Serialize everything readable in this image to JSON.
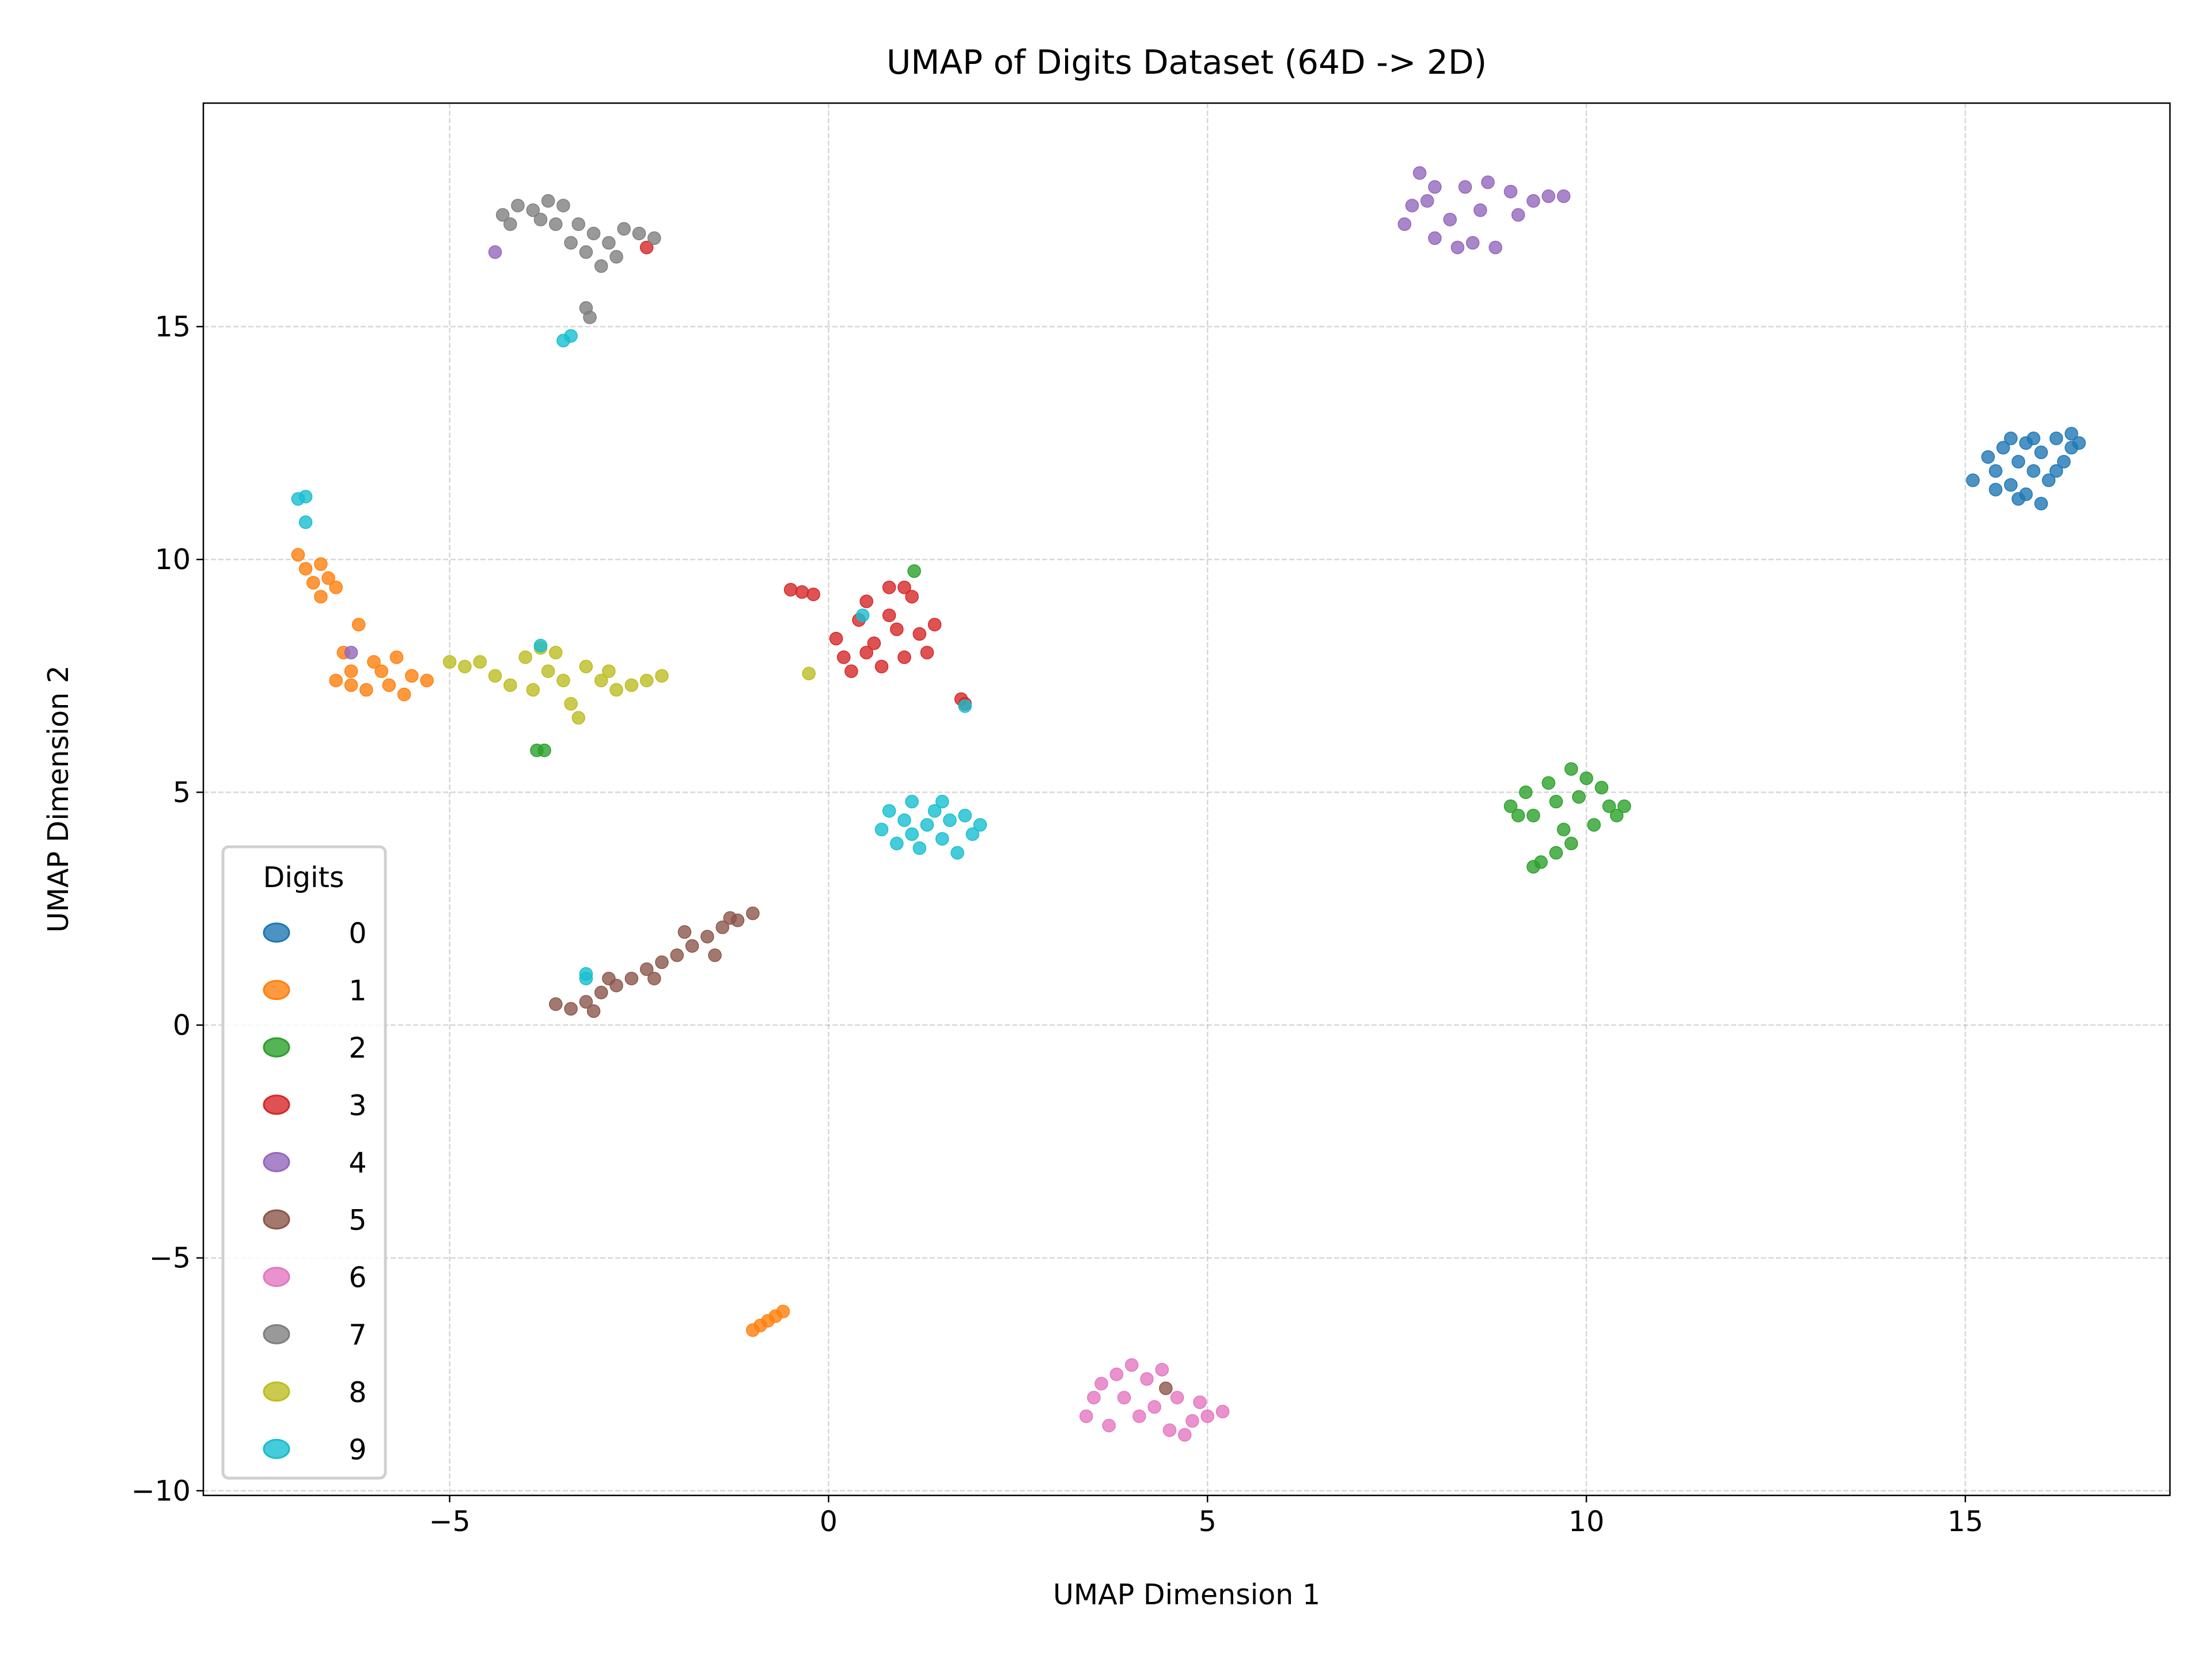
{
  "chart_data": {
    "type": "scatter",
    "title": "UMAP of Digits Dataset (64D -> 2D)",
    "xlabel": "UMAP Dimension 1",
    "ylabel": "UMAP Dimension 2",
    "xlim": [
      -8.25,
      17.7
    ],
    "ylim": [
      -10.1,
      19.8
    ],
    "xticks": [
      -5,
      0,
      5,
      10,
      15
    ],
    "yticks": [
      -10,
      -5,
      0,
      5,
      10,
      15
    ],
    "xtick_labels": [
      "−5",
      "0",
      "5",
      "10",
      "15"
    ],
    "ytick_labels": [
      "−10",
      "−5",
      "0",
      "5",
      "10",
      "15"
    ],
    "grid": true,
    "grid_style": "dashed",
    "legend": {
      "title": "Digits",
      "placement": "lower-left"
    },
    "marker_alpha": 0.8,
    "series": [
      {
        "name": "0",
        "color": "#1f77b4",
        "points": [
          [
            15.1,
            11.7
          ],
          [
            15.3,
            12.2
          ],
          [
            15.4,
            11.9
          ],
          [
            15.5,
            12.4
          ],
          [
            15.6,
            11.6
          ],
          [
            15.7,
            12.1
          ],
          [
            15.8,
            11.4
          ],
          [
            15.8,
            12.5
          ],
          [
            15.9,
            11.9
          ],
          [
            16.0,
            12.3
          ],
          [
            16.0,
            11.2
          ],
          [
            16.1,
            11.7
          ],
          [
            16.2,
            12.6
          ],
          [
            16.3,
            12.1
          ],
          [
            16.4,
            12.4
          ],
          [
            16.5,
            12.5
          ],
          [
            15.6,
            12.6
          ],
          [
            15.4,
            11.5
          ],
          [
            16.2,
            11.9
          ],
          [
            15.9,
            12.6
          ],
          [
            16.4,
            12.7
          ],
          [
            15.7,
            11.3
          ]
        ]
      },
      {
        "name": "1",
        "color": "#ff7f0e",
        "points": [
          [
            -7.0,
            10.1
          ],
          [
            -6.9,
            9.8
          ],
          [
            -6.8,
            9.5
          ],
          [
            -6.7,
            9.2
          ],
          [
            -6.6,
            9.6
          ],
          [
            -6.5,
            9.4
          ],
          [
            -6.7,
            9.9
          ],
          [
            -6.2,
            8.6
          ],
          [
            -6.4,
            8.0
          ],
          [
            -6.5,
            7.4
          ],
          [
            -6.3,
            7.3
          ],
          [
            -6.1,
            7.2
          ],
          [
            -5.9,
            7.6
          ],
          [
            -5.8,
            7.3
          ],
          [
            -5.6,
            7.1
          ],
          [
            -5.5,
            7.5
          ],
          [
            -5.3,
            7.4
          ],
          [
            -6.0,
            7.8
          ],
          [
            -5.7,
            7.9
          ],
          [
            -6.3,
            7.6
          ],
          [
            -1.0,
            -6.55
          ],
          [
            -0.9,
            -6.45
          ],
          [
            -0.8,
            -6.35
          ],
          [
            -0.7,
            -6.25
          ],
          [
            -0.6,
            -6.15
          ]
        ]
      },
      {
        "name": "2",
        "color": "#2ca02c",
        "points": [
          [
            9.0,
            4.7
          ],
          [
            9.2,
            5.0
          ],
          [
            9.3,
            4.5
          ],
          [
            9.5,
            5.2
          ],
          [
            9.6,
            4.8
          ],
          [
            9.8,
            5.5
          ],
          [
            9.9,
            4.9
          ],
          [
            10.0,
            5.3
          ],
          [
            10.2,
            5.1
          ],
          [
            10.3,
            4.7
          ],
          [
            10.4,
            4.5
          ],
          [
            10.1,
            4.3
          ],
          [
            9.8,
            3.9
          ],
          [
            9.6,
            3.7
          ],
          [
            9.4,
            3.5
          ],
          [
            9.3,
            3.4
          ],
          [
            9.7,
            4.2
          ],
          [
            10.5,
            4.7
          ],
          [
            9.1,
            4.5
          ],
          [
            -3.85,
            5.9
          ],
          [
            -3.75,
            5.9
          ],
          [
            1.13,
            9.75
          ]
        ]
      },
      {
        "name": "3",
        "color": "#d62728",
        "points": [
          [
            -0.5,
            9.35
          ],
          [
            -0.35,
            9.3
          ],
          [
            -0.2,
            9.25
          ],
          [
            0.1,
            8.3
          ],
          [
            0.2,
            7.9
          ],
          [
            0.3,
            7.6
          ],
          [
            0.4,
            8.7
          ],
          [
            0.5,
            9.1
          ],
          [
            0.6,
            8.2
          ],
          [
            0.7,
            7.7
          ],
          [
            0.8,
            9.4
          ],
          [
            0.9,
            8.5
          ],
          [
            1.0,
            7.9
          ],
          [
            1.1,
            9.2
          ],
          [
            1.2,
            8.4
          ],
          [
            1.3,
            8.0
          ],
          [
            1.4,
            8.6
          ],
          [
            0.5,
            8.0
          ],
          [
            0.8,
            8.8
          ],
          [
            1.0,
            9.4
          ],
          [
            1.75,
            7.0
          ],
          [
            1.8,
            6.9
          ],
          [
            -2.4,
            16.7
          ]
        ]
      },
      {
        "name": "4",
        "color": "#9467bd",
        "points": [
          [
            7.6,
            17.2
          ],
          [
            7.7,
            17.6
          ],
          [
            7.8,
            18.3
          ],
          [
            8.0,
            18.0
          ],
          [
            8.0,
            16.9
          ],
          [
            8.2,
            17.3
          ],
          [
            8.3,
            16.7
          ],
          [
            8.5,
            16.8
          ],
          [
            8.6,
            17.5
          ],
          [
            8.7,
            18.1
          ],
          [
            8.8,
            16.7
          ],
          [
            9.0,
            17.9
          ],
          [
            9.1,
            17.4
          ],
          [
            9.3,
            17.7
          ],
          [
            9.5,
            17.8
          ],
          [
            9.7,
            17.8
          ],
          [
            7.9,
            17.7
          ],
          [
            8.4,
            18.0
          ],
          [
            -4.4,
            16.6
          ],
          [
            -6.3,
            8.0
          ]
        ]
      },
      {
        "name": "5",
        "color": "#8c564b",
        "points": [
          [
            -3.6,
            0.45
          ],
          [
            -3.4,
            0.35
          ],
          [
            -3.2,
            0.5
          ],
          [
            -3.0,
            0.7
          ],
          [
            -2.8,
            0.85
          ],
          [
            -2.6,
            1.0
          ],
          [
            -2.4,
            1.2
          ],
          [
            -2.2,
            1.35
          ],
          [
            -2.0,
            1.5
          ],
          [
            -1.8,
            1.7
          ],
          [
            -1.6,
            1.9
          ],
          [
            -1.4,
            2.1
          ],
          [
            -1.2,
            2.25
          ],
          [
            -1.0,
            2.4
          ],
          [
            -2.9,
            1.0
          ],
          [
            -2.3,
            1.0
          ],
          [
            -1.9,
            2.0
          ],
          [
            -1.5,
            1.5
          ],
          [
            -1.3,
            2.3
          ],
          [
            -3.1,
            0.3
          ],
          [
            4.45,
            -7.8
          ]
        ]
      },
      {
        "name": "6",
        "color": "#e377c2",
        "points": [
          [
            3.4,
            -8.4
          ],
          [
            3.6,
            -7.7
          ],
          [
            3.7,
            -8.6
          ],
          [
            3.9,
            -8.0
          ],
          [
            4.0,
            -7.3
          ],
          [
            4.1,
            -8.4
          ],
          [
            4.2,
            -7.6
          ],
          [
            4.3,
            -8.2
          ],
          [
            4.5,
            -8.7
          ],
          [
            4.6,
            -8.0
          ],
          [
            4.8,
            -8.5
          ],
          [
            4.9,
            -8.1
          ],
          [
            5.0,
            -8.4
          ],
          [
            5.2,
            -8.3
          ],
          [
            3.5,
            -8.0
          ],
          [
            4.4,
            -7.4
          ],
          [
            4.7,
            -8.8
          ],
          [
            3.8,
            -7.5
          ]
        ]
      },
      {
        "name": "7",
        "color": "#7f7f7f",
        "points": [
          [
            -4.3,
            17.4
          ],
          [
            -4.1,
            17.6
          ],
          [
            -3.9,
            17.5
          ],
          [
            -3.7,
            17.7
          ],
          [
            -3.5,
            17.6
          ],
          [
            -3.3,
            17.2
          ],
          [
            -3.4,
            16.8
          ],
          [
            -3.2,
            16.6
          ],
          [
            -3.0,
            16.3
          ],
          [
            -2.9,
            16.8
          ],
          [
            -2.7,
            17.1
          ],
          [
            -2.5,
            17.0
          ],
          [
            -2.3,
            16.9
          ],
          [
            -3.6,
            17.2
          ],
          [
            -3.8,
            17.3
          ],
          [
            -3.1,
            17.0
          ],
          [
            -2.8,
            16.5
          ],
          [
            -3.2,
            15.4
          ],
          [
            -3.15,
            15.2
          ],
          [
            -4.2,
            17.2
          ]
        ]
      },
      {
        "name": "8",
        "color": "#bcbd22",
        "points": [
          [
            -4.6,
            7.8
          ],
          [
            -4.4,
            7.5
          ],
          [
            -4.2,
            7.3
          ],
          [
            -4.0,
            7.9
          ],
          [
            -3.9,
            7.2
          ],
          [
            -3.8,
            8.1
          ],
          [
            -3.7,
            7.6
          ],
          [
            -3.5,
            7.4
          ],
          [
            -3.4,
            6.9
          ],
          [
            -3.3,
            6.6
          ],
          [
            -3.2,
            7.7
          ],
          [
            -3.0,
            7.4
          ],
          [
            -2.8,
            7.2
          ],
          [
            -2.6,
            7.3
          ],
          [
            -2.4,
            7.4
          ],
          [
            -2.2,
            7.5
          ],
          [
            -4.8,
            7.7
          ],
          [
            -5.0,
            7.8
          ],
          [
            -0.26,
            7.55
          ],
          [
            -3.6,
            8.0
          ],
          [
            -2.9,
            7.6
          ]
        ]
      },
      {
        "name": "9",
        "color": "#17becf",
        "points": [
          [
            0.7,
            4.2
          ],
          [
            0.8,
            4.6
          ],
          [
            0.9,
            3.9
          ],
          [
            1.0,
            4.4
          ],
          [
            1.1,
            4.8
          ],
          [
            1.2,
            3.8
          ],
          [
            1.3,
            4.3
          ],
          [
            1.4,
            4.6
          ],
          [
            1.5,
            4.0
          ],
          [
            1.6,
            4.4
          ],
          [
            1.7,
            3.7
          ],
          [
            1.8,
            4.5
          ],
          [
            1.9,
            4.1
          ],
          [
            2.0,
            4.3
          ],
          [
            1.1,
            4.1
          ],
          [
            1.5,
            4.8
          ],
          [
            -7.0,
            11.3
          ],
          [
            -6.9,
            11.35
          ],
          [
            -6.9,
            10.8
          ],
          [
            -3.5,
            14.7
          ],
          [
            -3.4,
            14.8
          ],
          [
            -3.2,
            1.1
          ],
          [
            -3.2,
            1.0
          ],
          [
            1.8,
            6.85
          ],
          [
            0.45,
            8.8
          ],
          [
            -3.8,
            8.15
          ]
        ]
      }
    ]
  }
}
